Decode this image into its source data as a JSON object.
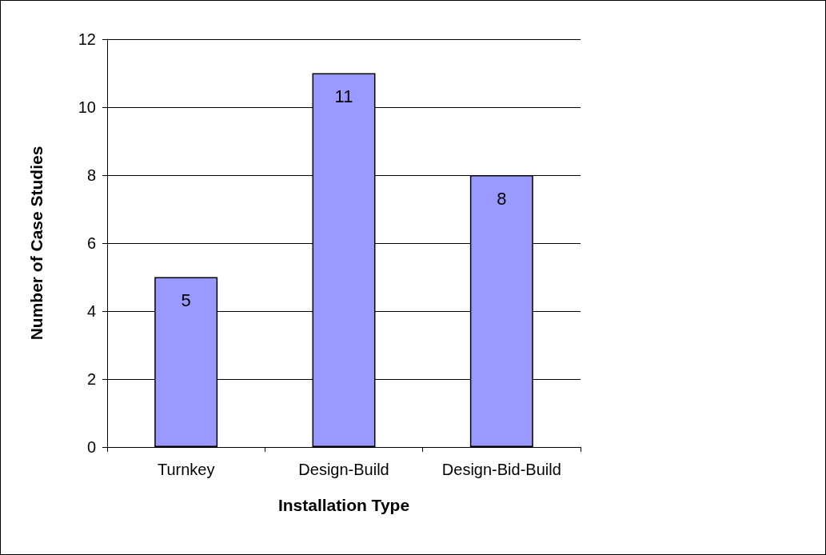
{
  "chart_data": {
    "type": "bar",
    "xlabel": "Installation Type",
    "ylabel": "Number of Case Studies",
    "categories": [
      "Turnkey",
      "Design-Build",
      "Design-Bid-Build"
    ],
    "values": [
      5,
      11,
      8
    ],
    "color": "#9999ff",
    "ylim": [
      0,
      12
    ],
    "yticks": [
      0,
      2,
      4,
      6,
      8,
      10,
      12
    ],
    "grid": "y",
    "data_labels": true
  }
}
